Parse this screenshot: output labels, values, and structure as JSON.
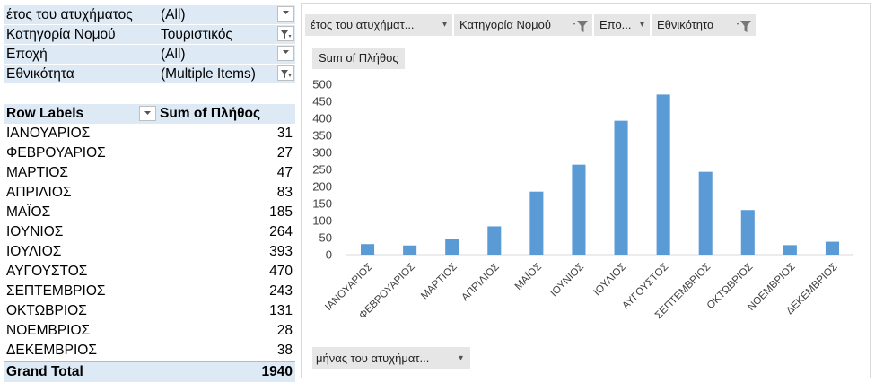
{
  "filters": [
    {
      "label": "έτος του ατυχήματος",
      "value": "(All)",
      "filtered": false
    },
    {
      "label": "Κατηγορία Νομού",
      "value": "Τουριστικός",
      "filtered": true
    },
    {
      "label": "Εποχή",
      "value": "(All)",
      "filtered": false
    },
    {
      "label": "Εθνικότητα",
      "value": "(Multiple Items)",
      "filtered": true
    }
  ],
  "pivot": {
    "row_labels_header": "Row Labels",
    "value_header": "Sum of Πλήθος",
    "rows": [
      {
        "month": "ΙΑΝΟΥΑΡΙΟΣ",
        "value": "31"
      },
      {
        "month": "ΦΕΒΡΟΥΑΡΙΟΣ",
        "value": "27"
      },
      {
        "month": "ΜΑΡΤΙΟΣ",
        "value": "47"
      },
      {
        "month": "ΑΠΡΙΛΙΟΣ",
        "value": "83"
      },
      {
        "month": "ΜΑΪΟΣ",
        "value": "185"
      },
      {
        "month": "ΙΟΥΝΙΟΣ",
        "value": "264"
      },
      {
        "month": "ΙΟΥΛΙΟΣ",
        "value": "393"
      },
      {
        "month": "ΑΥΓΟΥΣΤΟΣ",
        "value": "470"
      },
      {
        "month": "ΣΕΠΤΕΜΒΡΙΟΣ",
        "value": "243"
      },
      {
        "month": "ΟΚΤΩΒΡΙΟΣ",
        "value": "131"
      },
      {
        "month": "ΝΟΕΜΒΡΙΟΣ",
        "value": "28"
      },
      {
        "month": "ΔΕΚΕΜΒΡΙΟΣ",
        "value": "38"
      }
    ],
    "total_label": "Grand Total",
    "total_value": "1940"
  },
  "chart_buttons": {
    "year": "έτος του ατυχήματ...",
    "category": "Κατηγορία Νομού",
    "season": "Επο...",
    "nationality": "Εθνικότητα",
    "sum": "Sum of Πλήθος",
    "month": "μήνας του ατυχήματ..."
  },
  "colors": {
    "bar": "#5b9bd5",
    "header_fill": "#dde9f5",
    "button_fill": "#e7e6e6"
  },
  "chart_data": {
    "type": "bar",
    "categories": [
      "ΙΑΝΟΥΑΡΙΟΣ",
      "ΦΕΒΡΟΥΑΡΙΟΣ",
      "ΜΑΡΤΙΟΣ",
      "ΑΠΡΙΛΙΟΣ",
      "ΜΑΪΟΣ",
      "ΙΟΥΝΙΟΣ",
      "ΙΟΥΛΙΟΣ",
      "ΑΥΓΟΥΣΤΟΣ",
      "ΣΕΠΤΕΜΒΡΙΟΣ",
      "ΟΚΤΩΒΡΙΟΣ",
      "ΝΟΕΜΒΡΙΟΣ",
      "ΔΕΚΕΜΒΡΙΟΣ"
    ],
    "series": [
      {
        "values": [
          31,
          27,
          47,
          83,
          185,
          264,
          393,
          470,
          243,
          131,
          28,
          38
        ]
      }
    ],
    "ylim": [
      0,
      500
    ],
    "yticks": [
      0,
      50,
      100,
      150,
      200,
      250,
      300,
      350,
      400,
      450,
      500
    ],
    "grid": false,
    "legend": "none"
  }
}
